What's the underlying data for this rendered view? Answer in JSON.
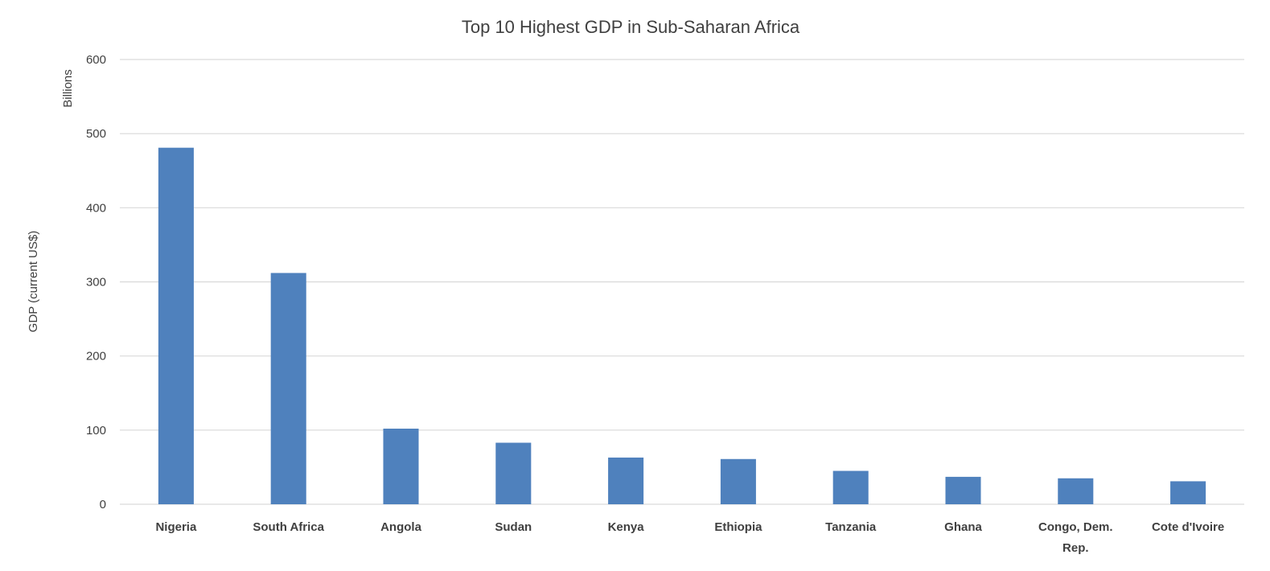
{
  "chart_data": {
    "type": "bar",
    "title": "Top 10 Highest GDP in Sub-Saharan Africa",
    "xlabel": "",
    "ylabel": "GDP (current US$)",
    "y_unit_label": "Billions",
    "ylim": [
      0,
      600
    ],
    "yticks": [
      0,
      100,
      200,
      300,
      400,
      500,
      600
    ],
    "grid": true,
    "legend": "none",
    "bar_color": "#4f81bd",
    "categories": [
      "Nigeria",
      "South Africa",
      "Angola",
      "Sudan",
      "Kenya",
      "Ethiopia",
      "Tanzania",
      "Ghana",
      "Congo, Dem. Rep.",
      "Cote d'Ivoire"
    ],
    "values": [
      481,
      312,
      102,
      83,
      63,
      61,
      45,
      37,
      35,
      31
    ]
  }
}
